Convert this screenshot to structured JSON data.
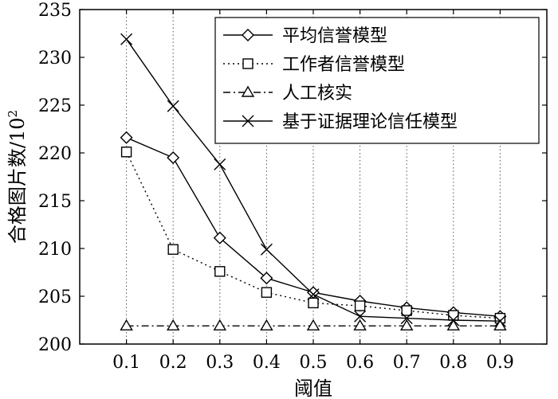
{
  "chart_data": {
    "type": "line",
    "xlabel": "阈值",
    "ylabel": "合格图片数/10",
    "ylabel_exponent": "2",
    "x": [
      0.1,
      0.2,
      0.3,
      0.4,
      0.5,
      0.6,
      0.7,
      0.8,
      0.9
    ],
    "x_tick_labels": [
      "0.1",
      "0.2",
      "0.3",
      "0.4",
      "0.5",
      "0.6",
      "0.7",
      "0.8",
      "0.9"
    ],
    "xlim": [
      0.0,
      1.0
    ],
    "ylim": [
      200,
      235
    ],
    "y_ticks": [
      200,
      205,
      210,
      215,
      220,
      225,
      230,
      235
    ],
    "y_tick_labels": [
      "200",
      "205",
      "210",
      "215",
      "220",
      "225",
      "230",
      "235"
    ],
    "grid": "vertical dotted",
    "legend_position": "top-right",
    "series": [
      {
        "name": "平均信誉模型",
        "marker": "diamond",
        "line": "solid",
        "values": [
          221.6,
          219.5,
          211.1,
          206.9,
          205.4,
          204.5,
          203.8,
          203.3,
          202.9
        ]
      },
      {
        "name": "工作者信誉模型",
        "marker": "square",
        "line": "dotted",
        "values": [
          220.1,
          209.9,
          207.6,
          205.4,
          204.3,
          204.0,
          203.5,
          203.0,
          202.7
        ]
      },
      {
        "name": "人工核实",
        "marker": "triangle",
        "line": "dashdot",
        "values": [
          201.9,
          201.9,
          201.9,
          201.9,
          201.9,
          201.9,
          201.9,
          201.9,
          201.9
        ]
      },
      {
        "name": "基于证据理论信任模型",
        "marker": "x",
        "line": "solid",
        "values": [
          231.9,
          224.9,
          218.8,
          209.9,
          205.2,
          202.9,
          202.7,
          202.5,
          202.4
        ]
      }
    ]
  }
}
